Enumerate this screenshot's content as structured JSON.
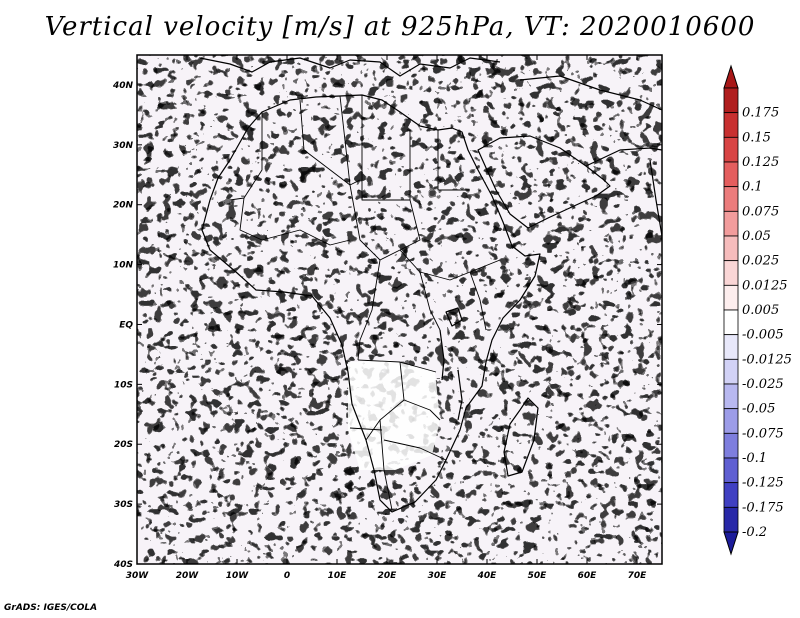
{
  "title": "Vertical velocity [m/s] at 925hPa, VT: 2020010600",
  "credit": "GrADS: IGES/COLA",
  "map": {
    "variable": "Vertical velocity",
    "units": "m/s",
    "level": "925hPa",
    "valid_time": "2020010600",
    "lon_range": [
      -30,
      75
    ],
    "lat_range": [
      -40,
      45
    ],
    "lon_ticks": [
      "30W",
      "20W",
      "10W",
      "0",
      "10E",
      "20E",
      "30E",
      "40E",
      "50E",
      "60E",
      "70E"
    ],
    "lat_ticks": [
      "40S",
      "30S",
      "20S",
      "10S",
      "EQ",
      "10N",
      "20N",
      "30N",
      "40N"
    ]
  },
  "colorbar": {
    "levels": [
      {
        "label": "0.175",
        "color": "#b01e1e"
      },
      {
        "label": "0.15",
        "color": "#c83030"
      },
      {
        "label": "0.125",
        "color": "#d84444"
      },
      {
        "label": "0.1",
        "color": "#e45e5e"
      },
      {
        "label": "0.075",
        "color": "#ec7c7c"
      },
      {
        "label": "0.05",
        "color": "#f29c9c"
      },
      {
        "label": "0.025",
        "color": "#f6bcbc"
      },
      {
        "label": "0.0125",
        "color": "#fad6d6"
      },
      {
        "label": "0.005",
        "color": "#fdeeee"
      },
      {
        "label": "-0.005",
        "color": "#ffffff"
      },
      {
        "label": "-0.0125",
        "color": "#e8e8fa"
      },
      {
        "label": "-0.025",
        "color": "#d2d2f6"
      },
      {
        "label": "-0.05",
        "color": "#b8b8f0"
      },
      {
        "label": "-0.075",
        "color": "#9c9ce8"
      },
      {
        "label": "-0.1",
        "color": "#7e7ede"
      },
      {
        "label": "-0.125",
        "color": "#5f5fd2"
      },
      {
        "label": "-0.175",
        "color": "#4040c2"
      },
      {
        "label": "-0.2",
        "color": "#2828a8"
      }
    ],
    "top_color": "#a81818",
    "bottom_color": "#1c1c9a"
  }
}
